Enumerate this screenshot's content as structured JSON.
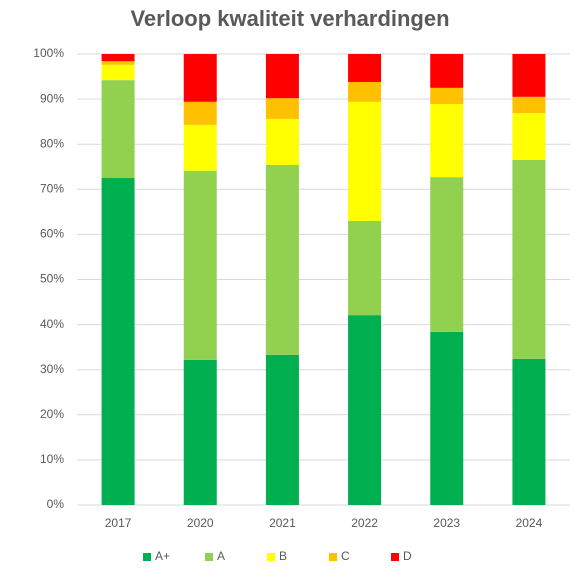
{
  "chart_data": {
    "type": "stacked_bar_percent",
    "title": "Verloop kwaliteit verhardingen",
    "categories": [
      "2017",
      "2020",
      "2021",
      "2022",
      "2023",
      "2024"
    ],
    "series": [
      {
        "name": "A+",
        "color": "#00b050",
        "values": [
          72.5,
          32.2,
          33.3,
          42.1,
          38.4,
          32.4
        ]
      },
      {
        "name": "A",
        "color": "#92d050",
        "values": [
          21.7,
          41.9,
          42.1,
          20.9,
          34.3,
          44.1
        ]
      },
      {
        "name": "B",
        "color": "#ffff00",
        "values": [
          3.4,
          10.2,
          10.2,
          26.4,
          16.2,
          10.4
        ]
      },
      {
        "name": "C",
        "color": "#ffc000",
        "values": [
          0.8,
          5.1,
          4.6,
          4.4,
          3.6,
          3.6
        ]
      },
      {
        "name": "D",
        "color": "#ff0000",
        "values": [
          1.6,
          10.6,
          9.8,
          6.2,
          7.5,
          9.5
        ]
      }
    ],
    "ylim": [
      0,
      100
    ],
    "yticks": [
      {
        "value": 0,
        "label": "0%"
      },
      {
        "value": 10,
        "label": "10%"
      },
      {
        "value": 20,
        "label": "20%"
      },
      {
        "value": 30,
        "label": "30%"
      },
      {
        "value": 40,
        "label": "40%"
      },
      {
        "value": 50,
        "label": "50%"
      },
      {
        "value": 60,
        "label": "60%"
      },
      {
        "value": 70,
        "label": "70%"
      },
      {
        "value": 80,
        "label": "80%"
      },
      {
        "value": 90,
        "label": "90%"
      },
      {
        "value": 100,
        "label": "100%"
      }
    ],
    "grid": true,
    "legend": "bottom"
  }
}
